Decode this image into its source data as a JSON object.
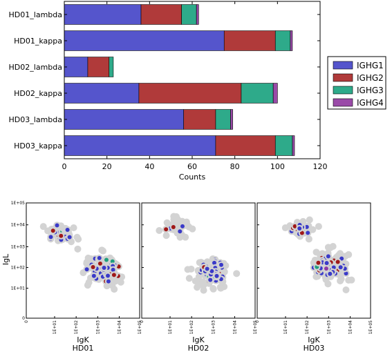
{
  "chart_data": [
    {
      "type": "bar",
      "orientation": "horizontal",
      "stacked": true,
      "categories": [
        "HD01_lambda",
        "HD01_kappa",
        "HD02_lambda",
        "HD02_kappa",
        "HD03_lambda",
        "HD03_kappa"
      ],
      "series": [
        {
          "name": "IGHG1",
          "color": "#5555cc",
          "values": [
            36,
            75,
            11,
            35,
            56,
            71
          ]
        },
        {
          "name": "IGHG2",
          "color": "#b03a3a",
          "values": [
            19,
            24,
            10,
            48,
            15,
            28
          ]
        },
        {
          "name": "IGHG3",
          "color": "#2eaa8a",
          "values": [
            7,
            7,
            2,
            15,
            7,
            8
          ]
        },
        {
          "name": "IGHG4",
          "color": "#9a4aa8",
          "values": [
            1,
            1,
            0,
            2,
            1,
            1
          ]
        }
      ],
      "xlabel": "Counts",
      "xlim": [
        0,
        120
      ],
      "xticks": [
        "0",
        "20",
        "40",
        "60",
        "80",
        "100",
        "120"
      ],
      "legend": {
        "position": "right",
        "entries": [
          "IGHG1",
          "IGHG2",
          "IGHG3",
          "IGHG4"
        ]
      }
    },
    {
      "type": "scatter",
      "ylabel": "IgL",
      "scale": "log",
      "xticks": [
        "0",
        "1E+01",
        "1E+02",
        "1E+03",
        "1E+04",
        "1E+05"
      ],
      "yticks": [
        "0",
        "1E+01",
        "1E+02",
        "1E+03",
        "1E+04",
        "1E+05"
      ],
      "colors": {
        "background": "#d3d3d3",
        "IGHG1": "#3a3ac8",
        "IGHG2": "#a01818",
        "IGHG3": "#1f9e7e",
        "IGHG4": "#8e3aa8"
      },
      "panels": [
        {
          "name": "HD01",
          "xlabel": "IgK\nHD01"
        },
        {
          "name": "HD02",
          "xlabel": "IgK\nHD02"
        },
        {
          "name": "HD03",
          "xlabel": "IgK\nHD03"
        }
      ]
    }
  ]
}
